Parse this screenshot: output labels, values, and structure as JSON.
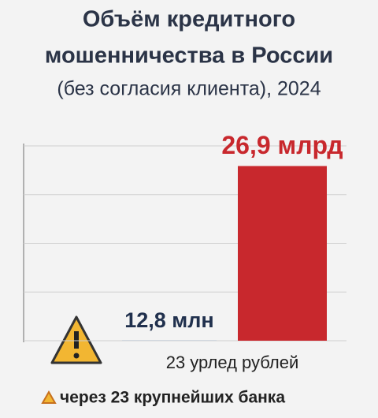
{
  "chart_data": {
    "type": "bar",
    "title": [
      "Объём кредитного",
      "мошенничества в России",
      "(без согласия клиента), 2024"
    ],
    "values": [
      12800000,
      26900000000
    ],
    "value_labels": [
      "12,8 млн",
      "26,9 млрд"
    ],
    "colors": [
      "#2f6db5",
      "#c8282d"
    ],
    "label_colors": [
      "#20304d",
      "#c8282d"
    ],
    "ylim": [
      0,
      30000000000
    ],
    "yticks": [
      0,
      7500000000,
      15000000000,
      22500000000,
      30000000000
    ],
    "grid": true,
    "x_label": "23 урлед рублей",
    "footnote": "через 23 крупнейших банка"
  }
}
